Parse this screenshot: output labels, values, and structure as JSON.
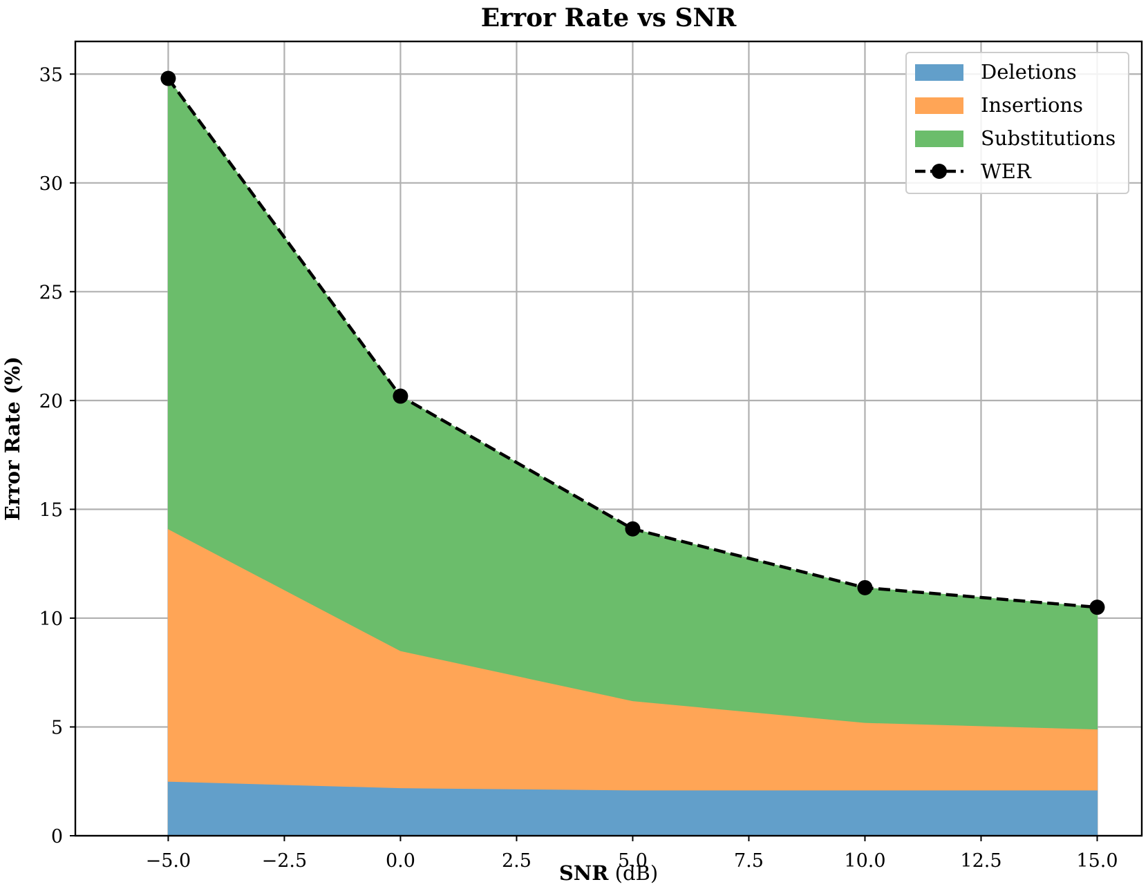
{
  "chart_data": {
    "type": "area",
    "stacked": true,
    "title": "Error Rate vs SNR",
    "xlabel_bold": "SNR",
    "xlabel_unit": "(dB)",
    "ylabel": "Error Rate (%)",
    "x": [
      -5,
      0,
      5,
      10,
      15
    ],
    "xlim": [
      -7,
      15.96
    ],
    "ylim": [
      0,
      36.5
    ],
    "xticks": [
      -5,
      -2.5,
      0,
      2.5,
      5,
      7.5,
      10,
      12.5,
      15
    ],
    "xtick_labels": [
      "−5.0",
      "−2.5",
      "0.0",
      "2.5",
      "5.0",
      "7.5",
      "10.0",
      "12.5",
      "15.0"
    ],
    "yticks": [
      0,
      5,
      10,
      15,
      20,
      25,
      30,
      35
    ],
    "ytick_labels": [
      "0",
      "5",
      "10",
      "15",
      "20",
      "25",
      "30",
      "35"
    ],
    "grid": true,
    "legend_position": "top-right",
    "series": [
      {
        "name": "Deletions",
        "values": [
          2.5,
          2.2,
          2.1,
          2.1,
          2.1
        ],
        "color": "#629fca"
      },
      {
        "name": "Insertions",
        "values": [
          11.6,
          6.3,
          4.1,
          3.1,
          2.8
        ],
        "color": "#ffa556"
      },
      {
        "name": "Substitutions",
        "values": [
          20.7,
          11.7,
          7.9,
          6.2,
          5.6
        ],
        "color": "#6bbd6b"
      }
    ],
    "line_series": {
      "name": "WER",
      "values": [
        34.8,
        20.2,
        14.1,
        11.4,
        10.5
      ],
      "color": "#000000",
      "style": "dashed",
      "marker": "circle"
    }
  }
}
